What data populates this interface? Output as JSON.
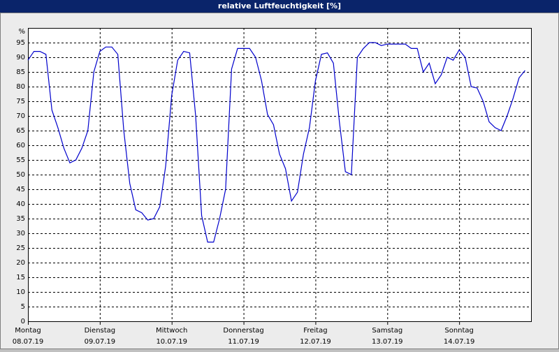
{
  "window": {
    "title": "relative Luftfeuchtigkeit [%]"
  },
  "chart_data": {
    "type": "line",
    "y_unit": "%",
    "x": [
      0,
      2,
      4,
      6,
      8,
      10,
      12,
      14,
      16,
      18,
      20,
      22,
      24,
      26,
      28,
      30,
      32,
      34,
      36,
      38,
      40,
      42,
      44,
      46,
      48,
      50,
      52,
      54,
      56,
      58,
      60,
      62,
      64,
      66,
      68,
      70,
      72,
      74,
      76,
      78,
      80,
      82,
      84,
      86,
      88,
      90,
      92,
      94,
      96,
      98,
      100,
      102,
      104,
      106,
      108,
      110,
      112,
      114,
      116,
      118,
      120,
      122,
      124,
      126,
      128,
      130,
      132,
      134,
      136,
      138,
      140,
      142,
      144,
      146,
      148,
      150,
      152,
      154,
      156,
      158,
      160,
      162,
      164,
      166
    ],
    "series": [
      {
        "color": "#0000cc",
        "values": [
          89,
          92,
          92,
          91,
          72,
          66,
          59,
          54,
          55,
          59,
          65,
          85,
          92,
          93.5,
          93.5,
          91,
          65,
          47,
          38,
          37,
          34.5,
          35,
          39,
          53,
          77,
          89,
          92,
          91.5,
          70,
          36,
          27,
          27,
          35,
          45,
          86,
          93,
          93,
          93,
          90,
          82,
          70.5,
          67,
          57,
          52,
          41,
          44,
          57,
          66,
          82,
          91,
          91.5,
          88,
          68,
          51,
          50,
          90,
          93,
          95,
          95,
          94,
          94.5,
          94.5,
          94.5,
          94.5,
          93,
          93,
          85,
          88,
          81,
          84,
          90,
          89,
          92.5,
          90,
          80,
          79.5,
          75,
          68,
          66,
          65,
          70,
          76,
          83,
          85.5
        ]
      }
    ],
    "xlim": [
      0,
      168
    ],
    "xticks": [
      {
        "value": 0,
        "label": "Montag"
      },
      {
        "value": 24,
        "label": "Dienstag"
      },
      {
        "value": 48,
        "label": "Mittwoch"
      },
      {
        "value": 72,
        "label": "Donnerstag"
      },
      {
        "value": 96,
        "label": "Freitag"
      },
      {
        "value": 120,
        "label": "Samstag"
      },
      {
        "value": 144,
        "label": "Sonntag"
      }
    ],
    "xtick_dates": [
      "08.07.19",
      "09.07.19",
      "10.07.19",
      "11.07.19",
      "12.07.19",
      "13.07.19",
      "14.07.19"
    ],
    "ylim": [
      0,
      100
    ],
    "yticks": [
      0,
      5,
      10,
      15,
      20,
      25,
      30,
      35,
      40,
      45,
      50,
      55,
      60,
      65,
      70,
      75,
      80,
      85,
      90,
      95
    ],
    "grid": true
  }
}
